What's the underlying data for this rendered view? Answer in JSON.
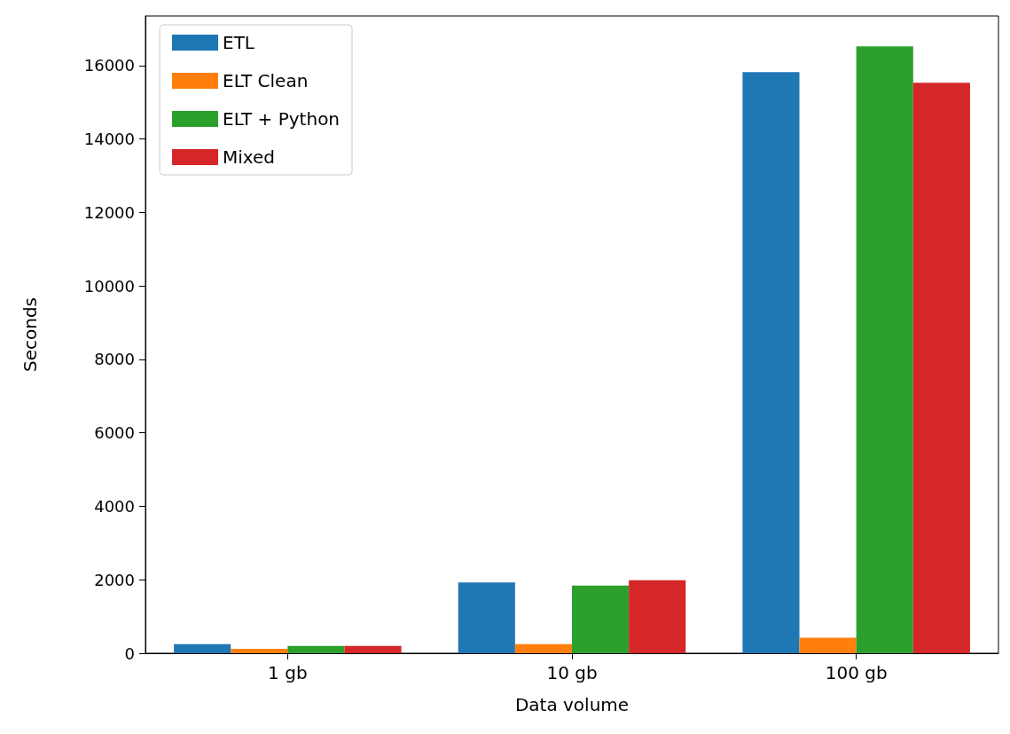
{
  "chart_data": {
    "type": "bar",
    "xlabel": "Data volume",
    "ylabel": "Seconds",
    "categories": [
      "1 gb",
      "10 gb",
      "100 gb"
    ],
    "series": [
      {
        "name": "ETL",
        "color": "#1f77b4",
        "values": [
          250,
          1930,
          15820
        ]
      },
      {
        "name": "ELT Clean",
        "color": "#ff7f0e",
        "values": [
          120,
          250,
          420
        ]
      },
      {
        "name": "ELT + Python",
        "color": "#2ca02c",
        "values": [
          200,
          1840,
          16520
        ]
      },
      {
        "name": "Mixed",
        "color": "#d62728",
        "values": [
          200,
          1990,
          15530
        ]
      }
    ],
    "ylim": [
      0,
      17350
    ],
    "yticks": [
      0,
      2000,
      4000,
      6000,
      8000,
      10000,
      12000,
      14000,
      16000
    ],
    "grid": false,
    "legend": "top left"
  }
}
